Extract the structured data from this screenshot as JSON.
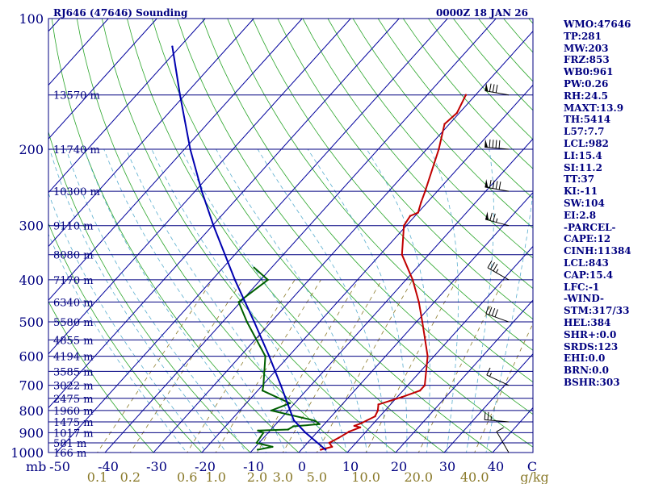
{
  "header": {
    "station": "RJ646 (47646) Sounding",
    "time": "0000Z 18 JAN 26"
  },
  "indices": [
    "WMO:47646",
    "TP:281",
    "MW:203",
    "FRZ:853",
    "WB0:961",
    "PW:0.26",
    "RH:24.5",
    "MAXT:13.9",
    "TH:5414",
    "L57:7.7",
    "LCL:982",
    "LI:15.4",
    "SI:11.2",
    "TT:37",
    "KI:-11",
    "SW:104",
    "EI:2.8",
    "-PARCEL-",
    "CAPE:12",
    "CINH:11384",
    "LCL:843",
    "CAP:15.4",
    "LFC:-1",
    "-WIND-",
    "STM:317/33",
    "HEL:384",
    "SHR+:0.0",
    "SRDS:123",
    "EHI:0.0",
    "BRN:0.0",
    "BSHR:303"
  ],
  "colors": {
    "frame": "#000080",
    "isobar": "#000080",
    "isotherm": "#00009c",
    "dry_adiabat": "#2aa52a",
    "moist_adiabat": "#5aaecf",
    "mixing_ratio": "#8a7a2a",
    "temperature": "#c00000",
    "dewpoint": "#006000",
    "parcel": "#0000b0",
    "wind": "#000000"
  },
  "chart_data": {
    "type": "line",
    "title": "RJ646 (47646) Sounding",
    "xlabel": "C",
    "ylabel": "mb",
    "xlim": [
      -50,
      50
    ],
    "ylim": [
      1000,
      100
    ],
    "pressure_ticks": [
      {
        "p": 100,
        "label": "100"
      },
      {
        "p": 200,
        "label": "200"
      },
      {
        "p": 300,
        "label": "300"
      },
      {
        "p": 400,
        "label": "400"
      },
      {
        "p": 500,
        "label": "500"
      },
      {
        "p": 600,
        "label": "600"
      },
      {
        "p": 700,
        "label": "700"
      },
      {
        "p": 800,
        "label": "800"
      },
      {
        "p": 900,
        "label": "900"
      },
      {
        "p": 1000,
        "label": "1000"
      }
    ],
    "temperature_ticks": [
      {
        "t": -50,
        "label": "-50"
      },
      {
        "t": -40,
        "label": "-40"
      },
      {
        "t": -30,
        "label": "-30"
      },
      {
        "t": -20,
        "label": "-20"
      },
      {
        "t": -10,
        "label": "-10"
      },
      {
        "t": 0,
        "label": "0"
      },
      {
        "t": 10,
        "label": "10"
      },
      {
        "t": 20,
        "label": "20"
      },
      {
        "t": 30,
        "label": "30"
      },
      {
        "t": 40,
        "label": "40"
      }
    ],
    "mb_label": "mb",
    "unit_label": "C",
    "mixing_ratio_unit": "g/kg",
    "mixing_ratio_labels": [
      {
        "w": 0.1,
        "label": "0.1"
      },
      {
        "w": 0.2,
        "label": "0.2"
      },
      {
        "w": 0.6,
        "label": "0.6"
      },
      {
        "w": 1.0,
        "label": "1.0"
      },
      {
        "w": 2.0,
        "label": "2.0"
      },
      {
        "w": 3.0,
        "label": "3.0"
      },
      {
        "w": 5.0,
        "label": "5.0"
      },
      {
        "w": 10.0,
        "label": "10.0"
      },
      {
        "w": 20.0,
        "label": "20.0"
      },
      {
        "w": 40.0,
        "label": "40.0"
      }
    ],
    "height_levels": [
      {
        "p": 150,
        "label": "13570 m"
      },
      {
        "p": 200,
        "label": "11740 m"
      },
      {
        "p": 250,
        "label": "10300 m"
      },
      {
        "p": 300,
        "label": "9110 m"
      },
      {
        "p": 350,
        "label": "8080 m"
      },
      {
        "p": 400,
        "label": "7170 m"
      },
      {
        "p": 450,
        "label": "6340 m"
      },
      {
        "p": 500,
        "label": "5580 m"
      },
      {
        "p": 550,
        "label": "4855 m"
      },
      {
        "p": 600,
        "label": "4194 m"
      },
      {
        "p": 650,
        "label": "3585 m"
      },
      {
        "p": 700,
        "label": "3022 m"
      },
      {
        "p": 750,
        "label": "2475 m"
      },
      {
        "p": 800,
        "label": "1960 m"
      },
      {
        "p": 850,
        "label": "1475 m"
      },
      {
        "p": 900,
        "label": "1017 m"
      },
      {
        "p": 950,
        "label": "581 m"
      },
      {
        "p": 1000,
        "label": "166 m"
      }
    ],
    "series": [
      {
        "name": "temperature",
        "color": "#c00000",
        "points": [
          {
            "p": 985,
            "t": 4.0
          },
          {
            "p": 970,
            "t": 5.8
          },
          {
            "p": 950,
            "t": 4.5
          },
          {
            "p": 925,
            "t": 5.5
          },
          {
            "p": 895,
            "t": 6.5
          },
          {
            "p": 875,
            "t": 8.0
          },
          {
            "p": 868,
            "t": 6.5
          },
          {
            "p": 855,
            "t": 7.5
          },
          {
            "p": 825,
            "t": 9.0
          },
          {
            "p": 800,
            "t": 8.5
          },
          {
            "p": 775,
            "t": 7.5
          },
          {
            "p": 745,
            "t": 11.0
          },
          {
            "p": 720,
            "t": 13.5
          },
          {
            "p": 700,
            "t": 13.5
          },
          {
            "p": 600,
            "t": 8.7
          },
          {
            "p": 500,
            "t": 1.2
          },
          {
            "p": 450,
            "t": -3.2
          },
          {
            "p": 400,
            "t": -8.6
          },
          {
            "p": 350,
            "t": -15.5
          },
          {
            "p": 300,
            "t": -20.5
          },
          {
            "p": 285,
            "t": -21.0
          },
          {
            "p": 280,
            "t": -20.0
          },
          {
            "p": 265,
            "t": -21.3
          },
          {
            "p": 250,
            "t": -22.5
          },
          {
            "p": 200,
            "t": -27.5
          },
          {
            "p": 175,
            "t": -31.0
          },
          {
            "p": 165,
            "t": -30.5
          },
          {
            "p": 150,
            "t": -32.0
          }
        ]
      },
      {
        "name": "dewpoint",
        "color": "#006000",
        "points": [
          {
            "p": 985,
            "t": -9.0
          },
          {
            "p": 970,
            "t": -6.5
          },
          {
            "p": 950,
            "t": -10.5
          },
          {
            "p": 900,
            "t": -11.0
          },
          {
            "p": 890,
            "t": -12.5
          },
          {
            "p": 885,
            "t": -6.5
          },
          {
            "p": 870,
            "t": -6.0
          },
          {
            "p": 860,
            "t": -1.0
          },
          {
            "p": 845,
            "t": -2.5
          },
          {
            "p": 800,
            "t": -13.5
          },
          {
            "p": 770,
            "t": -11.0
          },
          {
            "p": 720,
            "t": -19.0
          },
          {
            "p": 700,
            "t": -19.8
          },
          {
            "p": 600,
            "t": -24.8
          },
          {
            "p": 500,
            "t": -35.0
          },
          {
            "p": 450,
            "t": -40.4
          },
          {
            "p": 400,
            "t": -38.5
          },
          {
            "p": 375,
            "t": -43.6
          }
        ]
      },
      {
        "name": "parcel",
        "color": "#0000b0",
        "points": [
          {
            "p": 985,
            "t": 5.0
          },
          {
            "p": 900,
            "t": -2.3
          },
          {
            "p": 843,
            "t": -7.0
          },
          {
            "p": 800,
            "t": -9.6
          },
          {
            "p": 700,
            "t": -16.2
          },
          {
            "p": 600,
            "t": -24.0
          },
          {
            "p": 500,
            "t": -33.5
          },
          {
            "p": 400,
            "t": -45.3
          },
          {
            "p": 300,
            "t": -59.8
          },
          {
            "p": 250,
            "t": -68.6
          },
          {
            "p": 200,
            "t": -78.8
          },
          {
            "p": 150,
            "t": -91.0
          },
          {
            "p": 116,
            "t": -101.6
          }
        ]
      }
    ],
    "winds": [
      {
        "p": 150,
        "dir": 280,
        "spd_kt": 80
      },
      {
        "p": 200,
        "dir": 275,
        "spd_kt": 90
      },
      {
        "p": 250,
        "dir": 280,
        "spd_kt": 90
      },
      {
        "p": 300,
        "dir": 285,
        "spd_kt": 75
      },
      {
        "p": 400,
        "dir": 300,
        "spd_kt": 35
      },
      {
        "p": 500,
        "dir": 290,
        "spd_kt": 40
      },
      {
        "p": 700,
        "dir": 295,
        "spd_kt": 15
      },
      {
        "p": 850,
        "dir": 275,
        "spd_kt": 25
      },
      {
        "p": 1000,
        "dir": 330,
        "spd_kt": 10
      }
    ]
  }
}
